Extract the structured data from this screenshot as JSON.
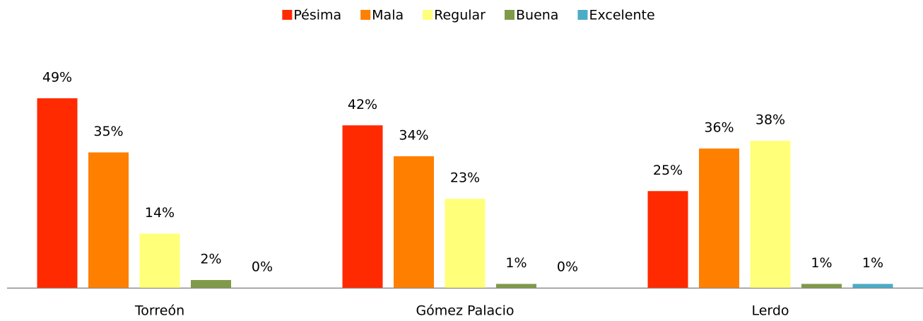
{
  "chart_data": {
    "type": "bar",
    "categories": [
      "Torreón",
      "Gómez Palacio",
      "Lerdo"
    ],
    "series": [
      {
        "name": "Pésima",
        "color": "#ff2a00",
        "values": [
          49,
          42,
          25
        ],
        "value_labels": [
          "49%",
          "42%",
          "25%"
        ]
      },
      {
        "name": "Mala",
        "color": "#ff7f00",
        "values": [
          35,
          34,
          36
        ],
        "value_labels": [
          "35%",
          "34%",
          "36%"
        ]
      },
      {
        "name": "Regular",
        "color": "#ffff7a",
        "values": [
          14,
          23,
          38
        ],
        "value_labels": [
          "14%",
          "23%",
          "38%"
        ]
      },
      {
        "name": "Buena",
        "color": "#7f9a48",
        "values": [
          2,
          1,
          1
        ],
        "value_labels": [
          "2%",
          "1%",
          "1%"
        ]
      },
      {
        "name": "Excelente",
        "color": "#4bacc6",
        "values": [
          0,
          0,
          1
        ],
        "value_labels": [
          "0%",
          "0%",
          "1%"
        ]
      }
    ],
    "ylim": [
      0,
      50
    ],
    "legend": "top"
  }
}
